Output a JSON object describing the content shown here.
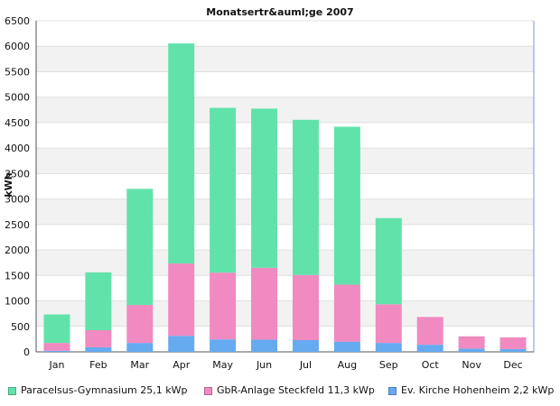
{
  "chart_data": {
    "type": "bar",
    "stacked": true,
    "title": "Monatsertr&auml;ge 2007",
    "xlabel": "",
    "ylabel": "kWh",
    "ylim": [
      0,
      6500
    ],
    "yticks": [
      0,
      500,
      1000,
      1500,
      2000,
      2500,
      3000,
      3500,
      4000,
      4500,
      5000,
      5500,
      6000,
      6500
    ],
    "categories": [
      "Jan",
      "Feb",
      "Mar",
      "Apr",
      "May",
      "Jun",
      "Jul",
      "Aug",
      "Sep",
      "Oct",
      "Nov",
      "Dec"
    ],
    "series": [
      {
        "name": "Ev. Kirche Hohenheim 2,2 kWp",
        "color": "#66aaf0",
        "values": [
          20,
          90,
          175,
          315,
          245,
          240,
          230,
          200,
          175,
          140,
          65,
          55
        ]
      },
      {
        "name": "GbR-Anlage Steckfeld 11,3 kWp",
        "color": "#f08ac0",
        "values": [
          155,
          335,
          745,
          1420,
          1310,
          1410,
          1280,
          1120,
          760,
          545,
          240,
          230
        ]
      },
      {
        "name": "Paracelsus-Gymnasium 25,1 kWp",
        "color": "#62e2ab",
        "values": [
          560,
          1135,
          2280,
          4320,
          3235,
          3125,
          3045,
          3100,
          1690,
          0,
          0,
          0
        ]
      }
    ],
    "legend_order": [
      "Paracelsus-Gymnasium 25,1 kWp",
      "GbR-Anlage Steckfeld 11,3 kWp",
      "Ev. Kirche Hohenheim 2,2 kWp"
    ],
    "legend_position": "bottom",
    "grid": true
  }
}
